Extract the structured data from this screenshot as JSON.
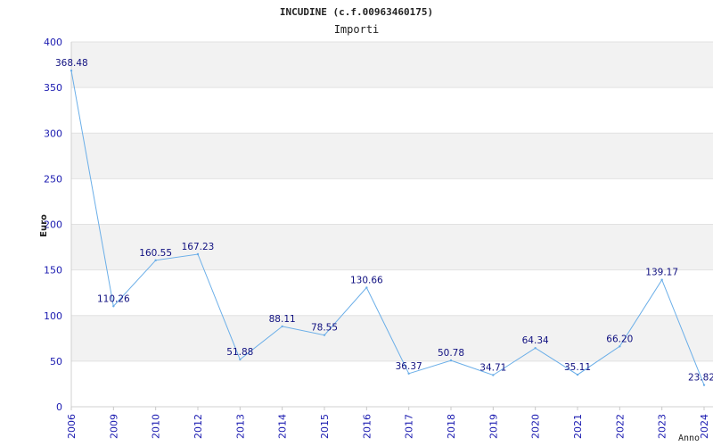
{
  "chart_data": {
    "type": "line",
    "title": "INCUDINE (c.f.00963460175)",
    "subtitle": "Importi",
    "xlabel": "Anno",
    "ylabel": "Euro",
    "ylim": [
      0,
      400
    ],
    "yticks": [
      0,
      50,
      100,
      150,
      200,
      250,
      300,
      350,
      400
    ],
    "grid": true,
    "categories": [
      "2006",
      "2009",
      "2010",
      "2012",
      "2013",
      "2014",
      "2015",
      "2016",
      "2017",
      "2018",
      "2019",
      "2020",
      "2021",
      "2022",
      "2023",
      "2024"
    ],
    "values": [
      368.48,
      110.26,
      160.55,
      167.23,
      51.88,
      88.11,
      78.55,
      130.66,
      36.37,
      50.78,
      34.71,
      64.34,
      35.11,
      66.2,
      139.17,
      23.82
    ],
    "value_labels": [
      "368.48",
      "110.26",
      "160.55",
      "167.23",
      "51.88",
      "88.11",
      "78.55",
      "130.66",
      "36.37",
      "50.78",
      "34.71",
      "64.34",
      "35.11",
      "66.20",
      "139.17",
      "23.82"
    ],
    "colors": {
      "line": "#6aaee8",
      "band": "#f2f2f2",
      "tick_text": "#1a1ab0",
      "label_text": "#101080"
    }
  }
}
